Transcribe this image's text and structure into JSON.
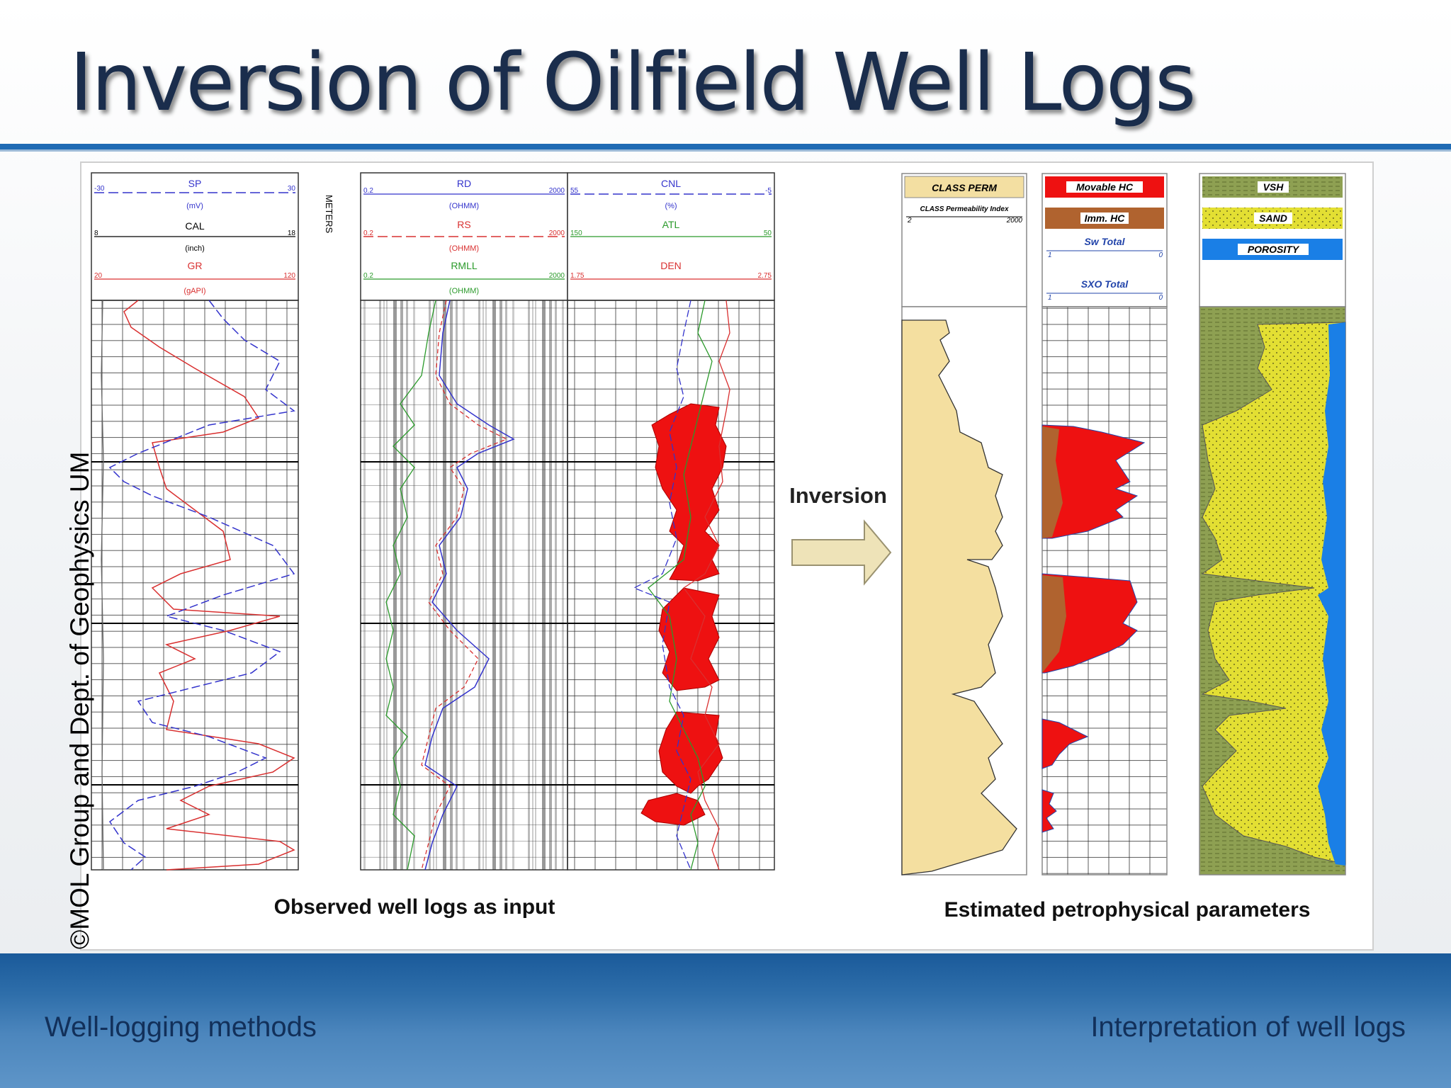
{
  "slide": {
    "title": "Inversion of Oilfield Well Logs",
    "credit": "©MOL Group and Dept. of Geophysics UM",
    "footer_left": "Well-logging methods",
    "footer_right": "Interpretation of well logs"
  },
  "figure": {
    "input_caption": "Observed well logs as input",
    "output_caption": "Estimated petrophysical parameters",
    "arrow_label": "Inversion",
    "track1": {
      "curves": [
        {
          "name": "SP",
          "unit": "(mV)",
          "min": "-30",
          "max": "30",
          "color": "#3333cc"
        },
        {
          "name": "CAL",
          "unit": "(inch)",
          "min": "8",
          "max": "18",
          "color": "#000000"
        },
        {
          "name": "GR",
          "unit": "(gAPI)",
          "min": "20",
          "max": "120",
          "color": "#d93030"
        }
      ]
    },
    "depth_track": {
      "label": "METERS"
    },
    "track2": {
      "curves": [
        {
          "name": "RD",
          "unit": "(OHMM)",
          "min": "0.2",
          "max": "2000",
          "color": "#3333cc"
        },
        {
          "name": "RS",
          "unit": "(OHMM)",
          "min": "0.2",
          "max": "2000",
          "color": "#d93030"
        },
        {
          "name": "RMLL",
          "unit": "(OHMM)",
          "min": "0.2",
          "max": "2000",
          "color": "#2a9a2a"
        }
      ]
    },
    "track3": {
      "curves": [
        {
          "name": "CNL",
          "unit": "(%)",
          "min": "55",
          "max": "-5",
          "color": "#3333cc"
        },
        {
          "name": "ATL",
          "unit": "",
          "min": "150",
          "max": "50",
          "color": "#2a9a2a"
        },
        {
          "name": "DEN",
          "unit": "",
          "min": "1.75",
          "max": "2.75",
          "color": "#d93030"
        }
      ]
    },
    "perm_track": {
      "label": "CLASS PERM",
      "sublabel": "CLASS Permeability Index",
      "min": "2",
      "max": "2000"
    },
    "saturation_track": {
      "legend": [
        "Movable HC",
        "Imm. HC"
      ],
      "curves": [
        {
          "name": "Sw Total",
          "min": "1",
          "max": "0"
        },
        {
          "name": "SXO Total",
          "min": "1",
          "max": "0"
        }
      ]
    },
    "volume_track": {
      "legend": [
        "VSH",
        "SAND",
        "POROSITY"
      ]
    }
  }
}
